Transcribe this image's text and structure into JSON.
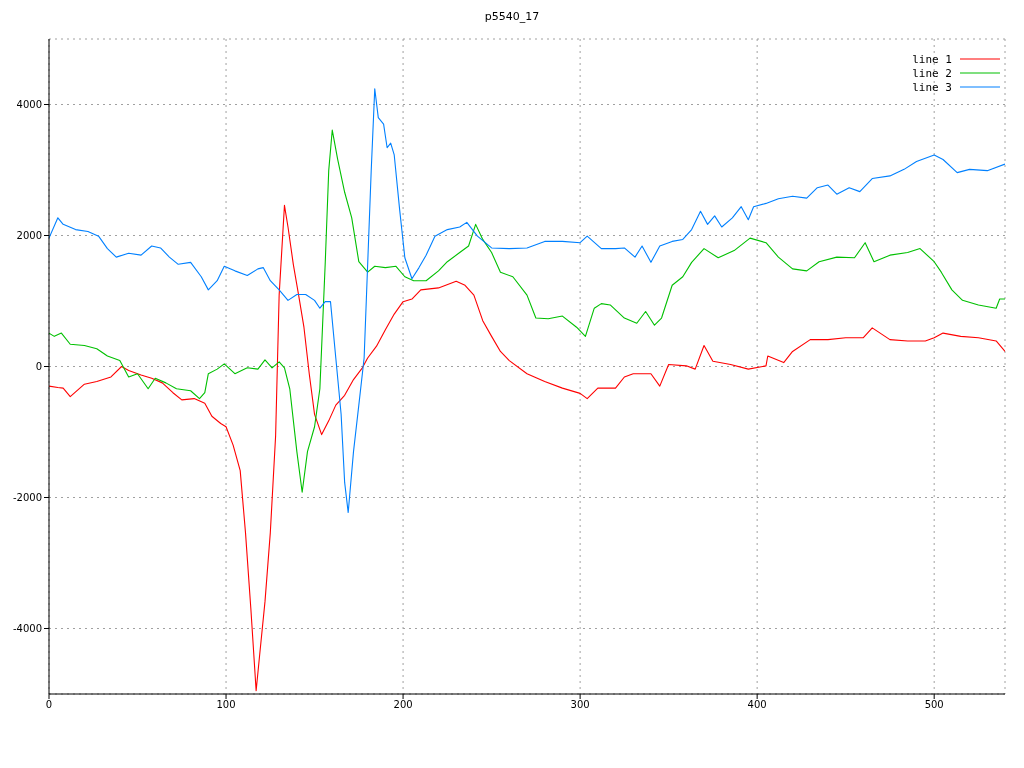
{
  "chart_data": {
    "type": "line",
    "title": "p5540_17",
    "xlim": [
      0,
      540
    ],
    "xticks": [
      0,
      100,
      200,
      300,
      400,
      500
    ],
    "ylim": [
      -5000,
      5000
    ],
    "yticks": [
      -4000,
      -2000,
      0,
      2000,
      4000
    ],
    "grid": true,
    "legend": "top right",
    "series": [
      {
        "name": "line 1",
        "color": "#ff0000",
        "x": [
          0,
          5,
          8,
          12,
          20,
          27,
          35,
          41,
          45,
          52,
          58,
          64,
          70,
          75,
          82,
          88,
          92,
          97,
          100,
          104,
          108,
          111,
          114,
          117,
          119,
          122,
          125,
          128,
          130,
          133,
          135,
          138,
          141,
          144,
          147,
          150,
          154,
          158,
          162,
          167,
          172,
          177,
          180,
          185,
          190,
          195,
          200,
          205,
          210,
          220,
          230,
          235,
          240,
          245,
          250,
          255,
          260,
          270,
          280,
          290,
          300,
          304,
          310,
          315,
          320,
          325,
          330,
          340,
          345,
          350,
          360,
          365,
          370,
          375,
          385,
          395,
          405,
          406,
          415,
          420,
          430,
          440,
          450,
          460,
          465,
          475,
          485,
          495,
          500,
          505,
          515,
          525,
          535,
          540
        ],
        "values": [
          -300,
          -320,
          -330,
          -460,
          -270,
          -230,
          -160,
          0,
          -60,
          -130,
          -180,
          -250,
          -400,
          -510,
          -490,
          -560,
          -760,
          -870,
          -920,
          -1200,
          -1590,
          -2540,
          -3690,
          -4950,
          -4400,
          -3590,
          -2540,
          -1060,
          1090,
          2460,
          2130,
          1560,
          1090,
          600,
          -110,
          -730,
          -1040,
          -830,
          -590,
          -440,
          -200,
          -20,
          130,
          310,
          560,
          800,
          990,
          1030,
          1170,
          1200,
          1300,
          1240,
          1090,
          700,
          460,
          230,
          90,
          -110,
          -230,
          -330,
          -410,
          -490,
          -330,
          -330,
          -330,
          -160,
          -110,
          -110,
          -300,
          30,
          10,
          -40,
          320,
          80,
          30,
          -40,
          10,
          160,
          60,
          230,
          410,
          410,
          440,
          440,
          590,
          410,
          390,
          390,
          440,
          510,
          460,
          440,
          390,
          230
        ]
      },
      {
        "name": "line 2",
        "color": "#00c000",
        "x": [
          0,
          3,
          7,
          12,
          20,
          27,
          33,
          40,
          45,
          50,
          56,
          60,
          66,
          72,
          80,
          85,
          88,
          90,
          95,
          99,
          105,
          112,
          118,
          122,
          126,
          130,
          133,
          136,
          140,
          143,
          146,
          150,
          153,
          156,
          158,
          160,
          163,
          167,
          171,
          175,
          180,
          184,
          190,
          196,
          201,
          206,
          213,
          220,
          225,
          232,
          237,
          241,
          245,
          250,
          255,
          262,
          270,
          275,
          282,
          290,
          298,
          303,
          308,
          312,
          317,
          325,
          332,
          337,
          342,
          346,
          352,
          358,
          363,
          370,
          378,
          387,
          396,
          405,
          412,
          420,
          428,
          435,
          445,
          455,
          461,
          466,
          475,
          485,
          492,
          500,
          504,
          510,
          516,
          525,
          535,
          537,
          540
        ],
        "values": [
          510,
          460,
          510,
          340,
          320,
          270,
          160,
          90,
          -160,
          -110,
          -340,
          -180,
          -250,
          -340,
          -370,
          -490,
          -400,
          -110,
          -40,
          40,
          -110,
          -20,
          -40,
          100,
          -20,
          70,
          -20,
          -340,
          -1300,
          -1920,
          -1300,
          -920,
          -340,
          1560,
          2990,
          3610,
          3170,
          2660,
          2270,
          1600,
          1440,
          1530,
          1510,
          1530,
          1370,
          1310,
          1310,
          1460,
          1600,
          1740,
          1840,
          2170,
          1940,
          1740,
          1440,
          1370,
          1090,
          740,
          730,
          770,
          600,
          460,
          890,
          960,
          940,
          740,
          660,
          840,
          630,
          740,
          1240,
          1370,
          1590,
          1800,
          1660,
          1770,
          1960,
          1890,
          1670,
          1490,
          1460,
          1600,
          1670,
          1660,
          1890,
          1600,
          1700,
          1740,
          1800,
          1600,
          1440,
          1170,
          1010,
          940,
          890,
          1030,
          1030
        ]
      },
      {
        "name": "line 3",
        "color": "#0080ff",
        "x": [
          0,
          5,
          8,
          15,
          22,
          28,
          33,
          38,
          45,
          52,
          58,
          63,
          68,
          73,
          80,
          86,
          90,
          95,
          99,
          105,
          112,
          118,
          121,
          125,
          130,
          135,
          140,
          145,
          150,
          153,
          156,
          159,
          162,
          165,
          167,
          169,
          172,
          175,
          178,
          180,
          182,
          184,
          186,
          189,
          191,
          193,
          195,
          198,
          201,
          205,
          209,
          213,
          218,
          225,
          232,
          236,
          242,
          250,
          260,
          270,
          280,
          290,
          300,
          304,
          312,
          320,
          325,
          331,
          335,
          340,
          345,
          352,
          358,
          363,
          368,
          372,
          376,
          380,
          386,
          391,
          395,
          398,
          405,
          412,
          420,
          428,
          434,
          440,
          445,
          452,
          458,
          465,
          475,
          483,
          490,
          500,
          505,
          513,
          520,
          530,
          540
        ],
        "values": [
          1960,
          2270,
          2170,
          2090,
          2060,
          1990,
          1800,
          1670,
          1730,
          1700,
          1840,
          1810,
          1670,
          1560,
          1590,
          1370,
          1170,
          1310,
          1530,
          1460,
          1390,
          1490,
          1510,
          1310,
          1170,
          1010,
          1100,
          1100,
          1010,
          890,
          990,
          990,
          130,
          -730,
          -1770,
          -2230,
          -1300,
          -590,
          130,
          1560,
          2990,
          4240,
          3800,
          3700,
          3340,
          3410,
          3230,
          2410,
          1660,
          1340,
          1510,
          1700,
          1990,
          2090,
          2130,
          2200,
          1990,
          1810,
          1800,
          1810,
          1910,
          1910,
          1890,
          1990,
          1800,
          1800,
          1810,
          1670,
          1840,
          1590,
          1840,
          1910,
          1940,
          2090,
          2370,
          2170,
          2300,
          2130,
          2270,
          2440,
          2240,
          2440,
          2490,
          2560,
          2600,
          2570,
          2730,
          2770,
          2630,
          2730,
          2670,
          2870,
          2910,
          3010,
          3130,
          3230,
          3160,
          2960,
          3010,
          2990,
          3090
        ]
      }
    ]
  }
}
